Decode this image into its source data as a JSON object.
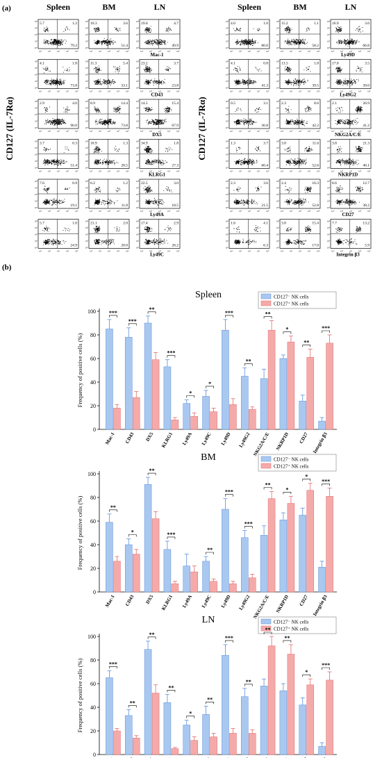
{
  "panel_a": {
    "label": "(a)",
    "ylabel": "CD127 (IL-7Rα)",
    "column_headers": [
      "Spleen",
      "BM",
      "LN"
    ],
    "tick_labels": [
      "10⁰",
      "10¹",
      "10²",
      "10³",
      "10⁴"
    ],
    "left_block": {
      "rows": [
        {
          "marker": "Mac-1",
          "plots": [
            {
              "ul": "5.7",
              "ur": "1.2",
              "lr": "79.2"
            },
            {
              "ul": "10.3",
              "ur": "3.6",
              "lr": "51.4"
            },
            {
              "ul": "19.6",
              "ur": "4.7",
              "lr": "49.9"
            }
          ]
        },
        {
          "marker": "CD43",
          "plots": [
            {
              "ul": "4.1",
              "ur": "1.8",
              "lr": "73.8"
            },
            {
              "ul": "11.3",
              "ur": "5.4",
              "lr": "33.1"
            },
            {
              "ul": "23.2",
              "ur": "3.7",
              "lr": "23.8"
            }
          ]
        },
        {
          "marker": "DX5",
          "plots": [
            {
              "ul": "2.9",
              "ur": "4.0",
              "lr": "90.0"
            },
            {
              "ul": "8.9",
              "ur": "14.4",
              "lr": "73.8"
            },
            {
              "ul": "14.5",
              "ur": "15.4",
              "lr": "67.9"
            }
          ]
        },
        {
          "marker": "KLRG1",
          "plots": [
            {
              "ul": "3.7",
              "ur": "0.3",
              "lr": "51.4"
            },
            {
              "ul": "16.9",
              "ur": "1.3",
              "lr": "28.5"
            },
            {
              "ul": "34.9",
              "ur": "1.8",
              "lr": "27.3"
            }
          ]
        },
        {
          "marker": "Ly49A",
          "plots": [
            {
              "ul": "7.6",
              "ur": "0.9",
              "lr": "19.1"
            },
            {
              "ul": "6.2",
              "ur": "1.2",
              "lr": "11.8"
            },
            {
              "ul": "22.5",
              "ur": "3.0",
              "lr": "18.5"
            }
          ]
        },
        {
          "marker": "Ly49C",
          "plots": [
            {
              "ul": "5.7",
              "ur": "1.0",
              "lr": "24.9"
            },
            {
              "ul": "21.1",
              "ur": "2.0",
              "lr": "20.0"
            },
            {
              "ul": "17.4",
              "ur": "2.9",
              "lr": "26.2"
            }
          ]
        }
      ]
    },
    "right_block": {
      "rows": [
        {
          "marker": "Ly49D",
          "plots": [
            {
              "ul": "4.0",
              "ur": "1.0",
              "lr": "80.0"
            },
            {
              "ul": "15.2",
              "ur": "1.1",
              "lr": "58.2"
            },
            {
              "ul": "16.9",
              "ur": "3.6",
              "lr": "66.8"
            }
          ]
        },
        {
          "marker": "Ly49G2",
          "plots": [
            {
              "ul": "4.1",
              "ur": "0.8",
              "lr": "41.3"
            },
            {
              "ul": "13.5",
              "ur": "1.8",
              "lr": "39.5"
            },
            {
              "ul": "17.0",
              "ur": "3.5",
              "lr": "39.0"
            }
          ]
        },
        {
          "marker": "NKG2A/C/E",
          "plots": [
            {
              "ul": "0.5",
              "ur": "3.1",
              "lr": "36.8"
            },
            {
              "ul": "2.3",
              "ur": "8.6",
              "lr": "42.2"
            },
            {
              "ul": "2.1",
              "ur": "26.9",
              "lr": "41.2"
            }
          ]
        },
        {
          "marker": "NKRP1D",
          "plots": [
            {
              "ul": "1.3",
              "ur": "3.7",
              "lr": "60.4"
            },
            {
              "ul": "3.8",
              "ur": "11.6",
              "lr": "52.6"
            },
            {
              "ul": "3.8",
              "ur": "21.3",
              "lr": "40.1"
            }
          ]
        },
        {
          "marker": "CD27",
          "plots": [
            {
              "ul": "2.3",
              "ur": "3.6",
              "lr": "21.5"
            },
            {
              "ul": "2.4",
              "ur": "16.3",
              "lr": "52.8"
            },
            {
              "ul": "8.6",
              "ur": "12.7",
              "lr": "38.2"
            }
          ]
        },
        {
          "marker": "Integrin β3",
          "plots": [
            {
              "ul": "1.6",
              "ur": "4.1",
              "lr": "6.3"
            },
            {
              "ul": "3.8",
              "ur": "15.4",
              "lr": "17.0"
            },
            {
              "ul": "7.7",
              "ur": "13.2",
              "lr": "5.9"
            }
          ]
        }
      ]
    }
  },
  "panel_b": {
    "label": "(b)"
  },
  "colors": {
    "minus_fill": "#a9c8f0",
    "minus_stroke": "#5b8ed8",
    "plus_fill": "#f5aaaa",
    "plus_stroke": "#e06a6a"
  },
  "chart_data": [
    {
      "type": "bar",
      "title": "Spleen",
      "ylabel": "Frequency of positive cells (%)",
      "ylim": [
        0,
        100
      ],
      "yticks": [
        0,
        20,
        40,
        60,
        80,
        100
      ],
      "categories": [
        "Mac-1",
        "CD43",
        "DX5",
        "KLRG1",
        "Ly49A",
        "Ly49C",
        "Ly49D",
        "Ly49G2",
        "NKG2A/C/E",
        "NKRP1D",
        "CD27",
        "Integrin β3"
      ],
      "series": [
        {
          "name": "CD127⁻ NK cells",
          "values": [
            85,
            78,
            90,
            53,
            22,
            28,
            84,
            45,
            43,
            60,
            24,
            7
          ],
          "errors": [
            8,
            8,
            6,
            6,
            3,
            5,
            9,
            7,
            8,
            3,
            5,
            3
          ]
        },
        {
          "name": "CD127⁺ NK cells",
          "values": [
            18,
            27,
            59,
            8,
            11,
            15,
            21,
            17,
            84,
            74,
            61,
            73
          ],
          "errors": [
            3,
            5,
            6,
            2,
            3,
            3,
            5,
            2,
            8,
            5,
            7,
            7
          ]
        }
      ],
      "significance": [
        "***",
        "***",
        "**",
        "***",
        "*",
        "*",
        "***",
        "**",
        "**",
        "*",
        "**",
        "***"
      ],
      "legend": "top-right"
    },
    {
      "type": "bar",
      "title": "BM",
      "ylabel": "Frequency of positive cells (%)",
      "ylim": [
        0,
        100
      ],
      "yticks": [
        0,
        20,
        40,
        60,
        80,
        100
      ],
      "categories": [
        "Mac-1",
        "CD43",
        "DX5",
        "KLRG1",
        "Ly49A",
        "Ly49C",
        "Ly49D",
        "Ly49G2",
        "NKG2A/C/E",
        "NKRP1D",
        "CD27",
        "Integrin β3"
      ],
      "series": [
        {
          "name": "CD127⁻ NK cells",
          "values": [
            59,
            40,
            91,
            36,
            22,
            26,
            70,
            46,
            48,
            61,
            65,
            21
          ],
          "errors": [
            7,
            5,
            6,
            7,
            10,
            4,
            9,
            6,
            8,
            6,
            6,
            5
          ]
        },
        {
          "name": "CD127⁺ NK cells",
          "values": [
            26,
            32,
            62,
            7,
            17,
            9,
            7,
            12,
            79,
            75,
            86,
            81
          ],
          "errors": [
            4,
            4,
            6,
            2,
            5,
            2,
            2,
            3,
            6,
            6,
            6,
            7
          ]
        }
      ],
      "significance": [
        "**",
        "*",
        "**",
        "***",
        "",
        "**",
        "***",
        "***",
        "**",
        "*",
        "*",
        "***"
      ],
      "legend": "top-right"
    },
    {
      "type": "bar",
      "title": "LN",
      "ylabel": "Frequency of positive cells (%)",
      "ylim": [
        0,
        100
      ],
      "yticks": [
        0,
        20,
        40,
        60,
        80,
        100
      ],
      "categories": [
        "Mac-1",
        "CD43",
        "DX5",
        "KLRG1",
        "Ly49A",
        "Ly49C",
        "Ly49D",
        "Ly49G2",
        "NKG2A/C/E",
        "NKRP1D",
        "CD27",
        "Integrin β3"
      ],
      "series": [
        {
          "name": "CD127⁻ NK cells",
          "values": [
            65,
            33,
            89,
            44,
            25,
            34,
            84,
            49,
            58,
            54,
            42,
            7
          ],
          "errors": [
            6,
            5,
            7,
            7,
            4,
            7,
            9,
            7,
            6,
            6,
            6,
            3
          ]
        },
        {
          "name": "CD127⁺ NK cells",
          "values": [
            20,
            14,
            52,
            5,
            12,
            15,
            18,
            18,
            92,
            85,
            59,
            63
          ],
          "errors": [
            2,
            2,
            7,
            1,
            3,
            3,
            4,
            3,
            8,
            8,
            5,
            7
          ]
        }
      ],
      "significance": [
        "***",
        "**",
        "**",
        "**",
        "*",
        "**",
        "***",
        "**",
        "**",
        "**",
        "*",
        "***"
      ],
      "legend": "top-right"
    }
  ]
}
